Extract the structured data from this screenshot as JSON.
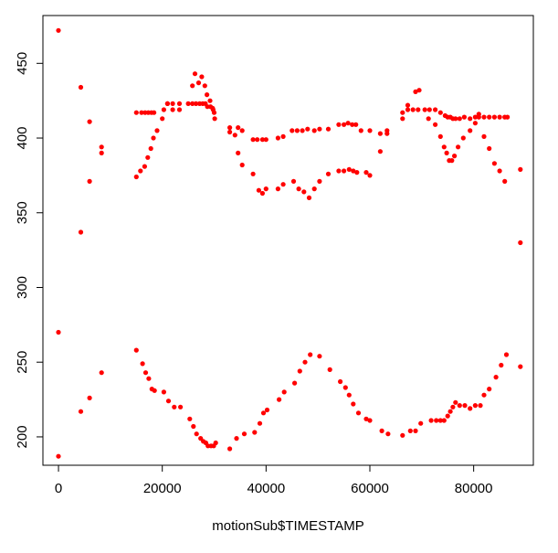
{
  "chart_data": {
    "type": "scatter",
    "title": "",
    "xlabel": "motionSub$TIMESTAMP",
    "ylabel": "",
    "xlim": [
      -3000,
      91500
    ],
    "ylim": [
      181,
      482
    ],
    "xticks": [
      0,
      20000,
      40000,
      60000,
      80000
    ],
    "yticks": [
      200,
      250,
      300,
      350,
      400,
      450
    ],
    "grid": false,
    "legend": "none",
    "marker_color": "#ff0000",
    "series": [
      {
        "values": [
          [
            0,
            472
          ],
          [
            0,
            270
          ],
          [
            0,
            187
          ],
          [
            4300,
            434
          ],
          [
            4300,
            337
          ],
          [
            4300,
            217
          ],
          [
            6000,
            411
          ],
          [
            6000,
            371
          ],
          [
            6000,
            226
          ],
          [
            8300,
            394
          ],
          [
            8300,
            390
          ],
          [
            8300,
            243
          ],
          [
            15000,
            417
          ],
          [
            15000,
            374
          ],
          [
            15000,
            258
          ],
          [
            15800,
            378
          ],
          [
            16000,
            417
          ],
          [
            16200,
            249
          ],
          [
            16600,
            381
          ],
          [
            16700,
            417
          ],
          [
            16800,
            243
          ],
          [
            17200,
            387
          ],
          [
            17300,
            417
          ],
          [
            17400,
            239
          ],
          [
            17800,
            393
          ],
          [
            17900,
            417
          ],
          [
            18000,
            232
          ],
          [
            18300,
            400
          ],
          [
            18400,
            417
          ],
          [
            18500,
            231
          ],
          [
            19000,
            405
          ],
          [
            20000,
            413
          ],
          [
            20300,
            419
          ],
          [
            20300,
            230
          ],
          [
            21000,
            423
          ],
          [
            21000,
            423
          ],
          [
            21200,
            224
          ],
          [
            22000,
            419
          ],
          [
            22000,
            423
          ],
          [
            22300,
            220
          ],
          [
            23300,
            419
          ],
          [
            23300,
            423
          ],
          [
            23500,
            220
          ],
          [
            25000,
            423
          ],
          [
            25300,
            212
          ],
          [
            25800,
            435
          ],
          [
            25800,
            423
          ],
          [
            26000,
            207
          ],
          [
            26300,
            443
          ],
          [
            26500,
            423
          ],
          [
            26600,
            202
          ],
          [
            27000,
            437
          ],
          [
            27200,
            423
          ],
          [
            27400,
            199
          ],
          [
            27600,
            441
          ],
          [
            27800,
            423
          ],
          [
            27900,
            197
          ],
          [
            28200,
            435
          ],
          [
            28300,
            423
          ],
          [
            28400,
            196
          ],
          [
            28600,
            429
          ],
          [
            28700,
            421
          ],
          [
            28800,
            194
          ],
          [
            29200,
            425
          ],
          [
            29300,
            421
          ],
          [
            29400,
            194
          ],
          [
            29700,
            420
          ],
          [
            29800,
            419
          ],
          [
            29900,
            194
          ],
          [
            30000,
            417
          ],
          [
            30100,
            413
          ],
          [
            30300,
            196
          ],
          [
            33000,
            407
          ],
          [
            33000,
            404
          ],
          [
            33000,
            192
          ],
          [
            34000,
            402
          ],
          [
            34300,
            199
          ],
          [
            34600,
            407
          ],
          [
            34600,
            390
          ],
          [
            35400,
            405
          ],
          [
            35400,
            382
          ],
          [
            35800,
            202
          ],
          [
            37500,
            399
          ],
          [
            37500,
            376
          ],
          [
            37800,
            203
          ],
          [
            38300,
            399
          ],
          [
            38600,
            365
          ],
          [
            38800,
            209
          ],
          [
            39300,
            399
          ],
          [
            39300,
            363
          ],
          [
            39500,
            216
          ],
          [
            40000,
            399
          ],
          [
            40000,
            366
          ],
          [
            40200,
            218
          ],
          [
            42300,
            400
          ],
          [
            42300,
            366
          ],
          [
            42500,
            225
          ],
          [
            43300,
            401
          ],
          [
            43300,
            369
          ],
          [
            43500,
            230
          ],
          [
            45000,
            405
          ],
          [
            45300,
            371
          ],
          [
            45500,
            236
          ],
          [
            46000,
            405
          ],
          [
            46300,
            366
          ],
          [
            46500,
            244
          ],
          [
            47000,
            405
          ],
          [
            47300,
            364
          ],
          [
            47500,
            250
          ],
          [
            48000,
            406
          ],
          [
            48300,
            360
          ],
          [
            48500,
            255
          ],
          [
            49300,
            405
          ],
          [
            49300,
            366
          ],
          [
            50300,
            406
          ],
          [
            50300,
            371
          ],
          [
            50300,
            254
          ],
          [
            52000,
            406
          ],
          [
            52000,
            376
          ],
          [
            52300,
            245
          ],
          [
            54000,
            409
          ],
          [
            54000,
            378
          ],
          [
            54300,
            237
          ],
          [
            55000,
            409
          ],
          [
            55000,
            378
          ],
          [
            55300,
            233
          ],
          [
            55800,
            410
          ],
          [
            56000,
            379
          ],
          [
            56000,
            228
          ],
          [
            56600,
            409
          ],
          [
            56800,
            378
          ],
          [
            56800,
            222
          ],
          [
            57300,
            409
          ],
          [
            57500,
            377
          ],
          [
            57800,
            216
          ],
          [
            58300,
            405
          ],
          [
            59300,
            377
          ],
          [
            59300,
            212
          ],
          [
            60000,
            375
          ],
          [
            60000,
            405
          ],
          [
            60000,
            211
          ],
          [
            62000,
            391
          ],
          [
            62000,
            403
          ],
          [
            62300,
            204
          ],
          [
            63300,
            403
          ],
          [
            63300,
            405
          ],
          [
            63500,
            202
          ],
          [
            66300,
            413
          ],
          [
            66300,
            417
          ],
          [
            66300,
            201
          ],
          [
            67300,
            419
          ],
          [
            67300,
            422
          ],
          [
            67800,
            204
          ],
          [
            68300,
            419
          ],
          [
            68800,
            431
          ],
          [
            68800,
            204
          ],
          [
            69300,
            419
          ],
          [
            69500,
            432
          ],
          [
            69800,
            209
          ],
          [
            70600,
            419
          ],
          [
            71300,
            413
          ],
          [
            71500,
            419
          ],
          [
            71800,
            211
          ],
          [
            72600,
            409
          ],
          [
            72600,
            419
          ],
          [
            72800,
            211
          ],
          [
            73600,
            401
          ],
          [
            73600,
            417
          ],
          [
            73600,
            211
          ],
          [
            74300,
            394
          ],
          [
            74500,
            415
          ],
          [
            74300,
            211
          ],
          [
            74800,
            390
          ],
          [
            75000,
            414
          ],
          [
            75000,
            214
          ],
          [
            75300,
            385
          ],
          [
            75500,
            414
          ],
          [
            75500,
            217
          ],
          [
            75800,
            385
          ],
          [
            76000,
            413
          ],
          [
            76000,
            220
          ],
          [
            76300,
            388
          ],
          [
            76500,
            413
          ],
          [
            76500,
            223
          ],
          [
            77000,
            394
          ],
          [
            77300,
            413
          ],
          [
            77300,
            221
          ],
          [
            78000,
            400
          ],
          [
            78200,
            414
          ],
          [
            78300,
            221
          ],
          [
            79300,
            405
          ],
          [
            79300,
            413
          ],
          [
            79300,
            219
          ],
          [
            80300,
            410
          ],
          [
            80300,
            414
          ],
          [
            80300,
            221
          ],
          [
            81000,
            414
          ],
          [
            81000,
            416
          ],
          [
            81300,
            221
          ],
          [
            82000,
            401
          ],
          [
            82000,
            414
          ],
          [
            82000,
            228
          ],
          [
            83000,
            393
          ],
          [
            83000,
            414
          ],
          [
            83000,
            232
          ],
          [
            84000,
            414
          ],
          [
            84000,
            383
          ],
          [
            84300,
            240
          ],
          [
            85000,
            414
          ],
          [
            85000,
            378
          ],
          [
            85300,
            248
          ],
          [
            86000,
            414
          ],
          [
            86000,
            371
          ],
          [
            86300,
            255
          ],
          [
            86500,
            414
          ],
          [
            89000,
            379
          ],
          [
            89000,
            330
          ],
          [
            89000,
            247
          ]
        ]
      }
    ]
  }
}
